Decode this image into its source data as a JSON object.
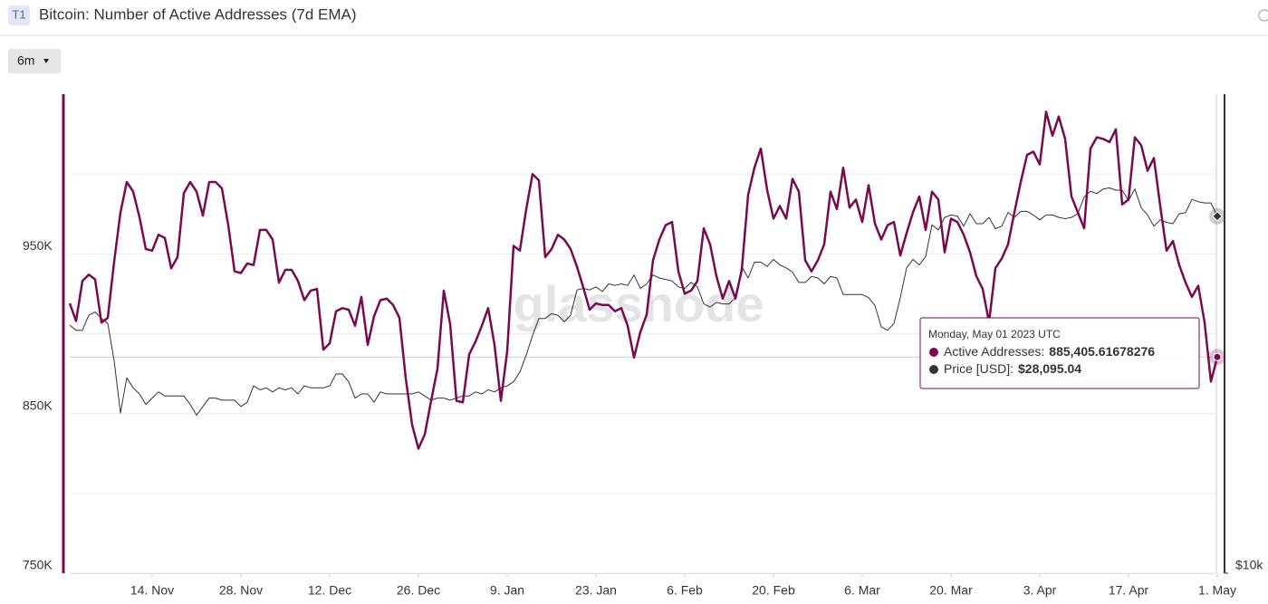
{
  "header": {
    "badge": "T1",
    "title": "Bitcoin: Number of Active Addresses (7d EMA)",
    "range_button": "6m"
  },
  "chart_data": {
    "type": "line",
    "watermark": "glassnode",
    "x": [
      "2022-11-01",
      "2022-11-02",
      "2022-11-03",
      "2022-11-04",
      "2022-11-05",
      "2022-11-06",
      "2022-11-07",
      "2022-11-08",
      "2022-11-09",
      "2022-11-10",
      "2022-11-11",
      "2022-11-12",
      "2022-11-13",
      "2022-11-14",
      "2022-11-15",
      "2022-11-16",
      "2022-11-17",
      "2022-11-18",
      "2022-11-19",
      "2022-11-20",
      "2022-11-21",
      "2022-11-22",
      "2022-11-23",
      "2022-11-24",
      "2022-11-25",
      "2022-11-26",
      "2022-11-27",
      "2022-11-28",
      "2022-11-29",
      "2022-11-30",
      "2022-12-01",
      "2022-12-02",
      "2022-12-03",
      "2022-12-04",
      "2022-12-05",
      "2022-12-06",
      "2022-12-07",
      "2022-12-08",
      "2022-12-09",
      "2022-12-10",
      "2022-12-11",
      "2022-12-12",
      "2022-12-13",
      "2022-12-14",
      "2022-12-15",
      "2022-12-16",
      "2022-12-17",
      "2022-12-18",
      "2022-12-19",
      "2022-12-20",
      "2022-12-21",
      "2022-12-22",
      "2022-12-23",
      "2022-12-24",
      "2022-12-25",
      "2022-12-26",
      "2022-12-27",
      "2022-12-28",
      "2022-12-29",
      "2022-12-30",
      "2022-12-31",
      "2023-01-01",
      "2023-01-02",
      "2023-01-03",
      "2023-01-04",
      "2023-01-05",
      "2023-01-06",
      "2023-01-07",
      "2023-01-08",
      "2023-01-09",
      "2023-01-10",
      "2023-01-11",
      "2023-01-12",
      "2023-01-13",
      "2023-01-14",
      "2023-01-15",
      "2023-01-16",
      "2023-01-17",
      "2023-01-18",
      "2023-01-19",
      "2023-01-20",
      "2023-01-21",
      "2023-01-22",
      "2023-01-23",
      "2023-01-24",
      "2023-01-25",
      "2023-01-26",
      "2023-01-27",
      "2023-01-28",
      "2023-01-29",
      "2023-01-30",
      "2023-01-31",
      "2023-02-01",
      "2023-02-02",
      "2023-02-03",
      "2023-02-04",
      "2023-02-05",
      "2023-02-06",
      "2023-02-07",
      "2023-02-08",
      "2023-02-09",
      "2023-02-10",
      "2023-02-11",
      "2023-02-12",
      "2023-02-13",
      "2023-02-14",
      "2023-02-15",
      "2023-02-16",
      "2023-02-17",
      "2023-02-18",
      "2023-02-19",
      "2023-02-20",
      "2023-02-21",
      "2023-02-22",
      "2023-02-23",
      "2023-02-24",
      "2023-02-25",
      "2023-02-26",
      "2023-02-27",
      "2023-02-28",
      "2023-03-01",
      "2023-03-02",
      "2023-03-03",
      "2023-03-04",
      "2023-03-05",
      "2023-03-06",
      "2023-03-07",
      "2023-03-08",
      "2023-03-09",
      "2023-03-10",
      "2023-03-11",
      "2023-03-12",
      "2023-03-13",
      "2023-03-14",
      "2023-03-15",
      "2023-03-16",
      "2023-03-17",
      "2023-03-18",
      "2023-03-19",
      "2023-03-20",
      "2023-03-21",
      "2023-03-22",
      "2023-03-23",
      "2023-03-24",
      "2023-03-25",
      "2023-03-26",
      "2023-03-27",
      "2023-03-28",
      "2023-03-29",
      "2023-03-30",
      "2023-03-31",
      "2023-04-01",
      "2023-04-02",
      "2023-04-03",
      "2023-04-04",
      "2023-04-05",
      "2023-04-06",
      "2023-04-07",
      "2023-04-08",
      "2023-04-09",
      "2023-04-10",
      "2023-04-11",
      "2023-04-12",
      "2023-04-13",
      "2023-04-14",
      "2023-04-15",
      "2023-04-16",
      "2023-04-17",
      "2023-04-18",
      "2023-04-19",
      "2023-04-20",
      "2023-04-21",
      "2023-04-22",
      "2023-04-23",
      "2023-04-24",
      "2023-04-25",
      "2023-04-26",
      "2023-04-27",
      "2023-04-28",
      "2023-04-29",
      "2023-04-30",
      "2023-05-01"
    ],
    "xlim": [
      "2022-11-01",
      "2023-05-01"
    ],
    "xticks": [
      {
        "value": "2022-11-14",
        "label": "14. Nov"
      },
      {
        "value": "2022-11-28",
        "label": "28. Nov"
      },
      {
        "value": "2022-12-12",
        "label": "12. Dec"
      },
      {
        "value": "2022-12-26",
        "label": "26. Dec"
      },
      {
        "value": "2023-01-09",
        "label": "9. Jan"
      },
      {
        "value": "2023-01-23",
        "label": "23. Jan"
      },
      {
        "value": "2023-02-06",
        "label": "6. Feb"
      },
      {
        "value": "2023-02-20",
        "label": "20. Feb"
      },
      {
        "value": "2023-03-06",
        "label": "6. Mar"
      },
      {
        "value": "2023-03-20",
        "label": "20. Mar"
      },
      {
        "value": "2023-04-03",
        "label": "3. Apr"
      },
      {
        "value": "2023-04-17",
        "label": "17. Apr"
      },
      {
        "value": "2023-05-01",
        "label": "1. May"
      }
    ],
    "ylim": [
      750000,
      1050000
    ],
    "yticks": [
      {
        "value": 750000,
        "label": "750K"
      },
      {
        "value": 850000,
        "label": "850K"
      },
      {
        "value": 950000,
        "label": "950K"
      }
    ],
    "yminorticks": [
      800000,
      900000,
      1000000
    ],
    "y2lim": [
      10000,
      40000
    ],
    "y2scale": "log",
    "y2ticks": [
      {
        "value": 10000,
        "label": "$10k"
      }
    ],
    "grid": true,
    "series": [
      {
        "name": "Active Addresses:",
        "color": "#7a0a4f",
        "values": [
          919000,
          908000,
          933000,
          937000,
          934000,
          907000,
          910000,
          945000,
          976000,
          995000,
          989000,
          973000,
          953000,
          952000,
          962000,
          960000,
          941000,
          948000,
          988000,
          995000,
          989000,
          974000,
          995000,
          995000,
          991000,
          968000,
          939000,
          938000,
          944000,
          943000,
          965000,
          965000,
          959000,
          932000,
          940000,
          940000,
          933000,
          921000,
          927000,
          928000,
          890000,
          894000,
          914000,
          916000,
          915000,
          905000,
          923000,
          893000,
          911000,
          921000,
          922000,
          918000,
          910000,
          872000,
          843000,
          828000,
          837000,
          858000,
          878000,
          927000,
          906000,
          858000,
          857000,
          887000,
          895000,
          905000,
          916000,
          893000,
          858000,
          889000,
          955000,
          952000,
          978000,
          1000000,
          996000,
          948000,
          953000,
          962000,
          959000,
          953000,
          942000,
          929000,
          915000,
          919000,
          918000,
          918000,
          914000,
          916000,
          905000,
          885000,
          901000,
          912000,
          946000,
          959000,
          968000,
          970000,
          939000,
          925000,
          927000,
          933000,
          966000,
          956000,
          936000,
          922000,
          933000,
          922000,
          940000,
          987000,
          1004000,
          1016000,
          990000,
          972000,
          980000,
          972000,
          997000,
          989000,
          946000,
          939000,
          946000,
          956000,
          989000,
          978000,
          1004000,
          979000,
          984000,
          970000,
          993000,
          969000,
          959000,
          968000,
          970000,
          949000,
          963000,
          976000,
          986000,
          965000,
          989000,
          984000,
          951000,
          972000,
          970000,
          962000,
          951000,
          936000,
          928000,
          907000,
          941000,
          947000,
          956000,
          976000,
          995000,
          1012000,
          1014000,
          1006000,
          1039000,
          1024000,
          1036000,
          1022000,
          986000,
          976000,
          966000,
          1016000,
          1023000,
          1022000,
          1020000,
          1028000,
          981000,
          984000,
          1023000,
          1018000,
          1002000,
          1010000,
          980000,
          952000,
          958000,
          943000,
          932000,
          923000,
          930000,
          907000,
          870000,
          885405.61678276
        ]
      },
      {
        "name": "Price [USD]:",
        "color": "#333333",
        "axis": "y2",
        "values": [
          20500,
          20200,
          20200,
          21100,
          21300,
          20900,
          20600,
          18500,
          15900,
          17600,
          17100,
          16800,
          16300,
          16600,
          16900,
          16700,
          16700,
          16700,
          16700,
          16300,
          15800,
          16200,
          16600,
          16600,
          16500,
          16500,
          16500,
          16200,
          16400,
          17200,
          17000,
          17100,
          16900,
          17100,
          17000,
          17100,
          16800,
          17200,
          17100,
          17100,
          17100,
          17200,
          17800,
          17800,
          17400,
          16600,
          16800,
          16800,
          16400,
          16900,
          16800,
          16800,
          16800,
          16800,
          16800,
          16900,
          16700,
          16500,
          16600,
          16600,
          16500,
          16600,
          16700,
          16700,
          16900,
          16800,
          17000,
          16900,
          17100,
          17200,
          17400,
          17900,
          18800,
          19900,
          20900,
          20900,
          21200,
          21100,
          20700,
          21100,
          22700,
          22800,
          22700,
          22900,
          22600,
          23100,
          23000,
          23100,
          23000,
          23700,
          22800,
          23100,
          23700,
          23500,
          23400,
          23300,
          22900,
          22800,
          23200,
          22900,
          21800,
          21600,
          21900,
          21800,
          21800,
          22200,
          24300,
          23500,
          24600,
          24600,
          24300,
          24800,
          24400,
          24200,
          23900,
          23200,
          23200,
          23600,
          23500,
          23100,
          23600,
          23500,
          22400,
          22400,
          22400,
          22400,
          22200,
          21700,
          20400,
          20200,
          20600,
          22200,
          24200,
          24800,
          24400,
          25000,
          27400,
          27000,
          28000,
          28200,
          28100,
          27300,
          28300,
          27500,
          27500,
          28000,
          27100,
          27300,
          28400,
          28000,
          28500,
          28500,
          28200,
          27800,
          28200,
          28200,
          28000,
          27900,
          28000,
          28300,
          29700,
          30200,
          30000,
          30400,
          30500,
          30300,
          30300,
          29400,
          30400,
          28800,
          28200,
          27300,
          27800,
          27600,
          27500,
          28300,
          28400,
          29500,
          29300,
          29200,
          29200,
          28095.04
        ]
      }
    ],
    "tooltip": {
      "title": "Monday, May 01 2023 UTC",
      "value_labels": [
        "885,405.61678276",
        "$28,095.04"
      ]
    }
  }
}
